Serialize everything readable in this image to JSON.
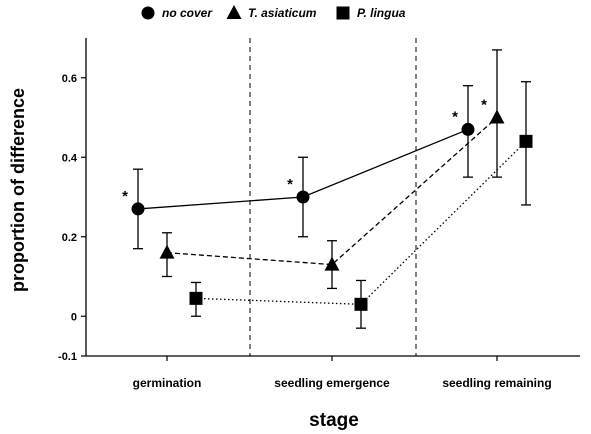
{
  "chart_data": {
    "type": "line",
    "xlabel": "stage",
    "ylabel": "proportion of difference",
    "ylim": [
      -0.1,
      0.7
    ],
    "yticks": [
      "-0.1",
      "0",
      "0.2",
      "0.4",
      "0.6"
    ],
    "ytick_values": [
      -0.1,
      0,
      0.2,
      0.4,
      0.6
    ],
    "categories": [
      "germination",
      "seedling emergence",
      "seedling remaining"
    ],
    "legend_position": "top",
    "grid": false,
    "series": [
      {
        "name": "no cover",
        "marker": "circle",
        "line_style": "solid",
        "values": [
          0.27,
          0.3,
          0.47
        ],
        "err_low": [
          0.17,
          0.2,
          0.35
        ],
        "err_high": [
          0.37,
          0.4,
          0.58
        ],
        "significance": [
          "*",
          "*",
          "*"
        ]
      },
      {
        "name": "T. asiaticum",
        "marker": "triangle",
        "line_style": "dashed",
        "values": [
          0.16,
          0.13,
          0.5
        ],
        "err_low": [
          0.1,
          0.07,
          0.35
        ],
        "err_high": [
          0.21,
          0.19,
          0.67
        ],
        "significance": [
          "",
          "",
          "*"
        ]
      },
      {
        "name": "P. lingua",
        "marker": "square",
        "line_style": "dotted",
        "values": [
          0.045,
          0.03,
          0.44
        ],
        "err_low": [
          0.0,
          -0.03,
          0.28
        ],
        "err_high": [
          0.085,
          0.09,
          0.59
        ],
        "significance": [
          "",
          "",
          ""
        ]
      }
    ]
  }
}
